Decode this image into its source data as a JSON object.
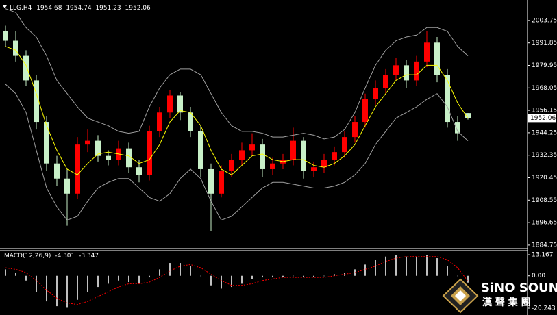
{
  "chart_data": [
    {
      "type": "candlestick",
      "title": "LLG,H4",
      "open": [
        1998,
        1993,
        1985,
        1972,
        1950,
        1928,
        1920,
        1912,
        1938,
        1940,
        1932,
        1930,
        1936,
        1926,
        1922,
        1945,
        1955,
        1964,
        1955,
        1945,
        1925,
        1912,
        1924,
        1930,
        1935,
        1938,
        1925,
        1928,
        1930,
        1940,
        1924,
        1926,
        1930,
        1934,
        1942,
        1950,
        1962,
        1968,
        1975,
        1980,
        1972,
        1982,
        1992,
        1975,
        1950,
        1954.68
      ],
      "high": [
        2001,
        1998,
        1988,
        1975,
        1953,
        1932,
        1925,
        1942,
        1946,
        1943,
        1935,
        1940,
        1939,
        1930,
        1948,
        1958,
        1967,
        1966,
        1958,
        1948,
        1928,
        1927,
        1933,
        1939,
        1944,
        1941,
        1931,
        1933,
        1947,
        1942,
        1929,
        1933,
        1937,
        1945,
        1953,
        1965,
        1972,
        1978,
        1984,
        1983,
        1985,
        1998,
        1995,
        1978,
        1953,
        1954.74
      ],
      "low": [
        1990,
        1982,
        1969,
        1946,
        1924,
        1916,
        1895,
        1909,
        1934,
        1929,
        1927,
        1927,
        1923,
        1918,
        1919,
        1942,
        1952,
        1951,
        1942,
        1921,
        1892,
        1910,
        1921,
        1927,
        1932,
        1921,
        1922,
        1925,
        1927,
        1920,
        1921,
        1923,
        1927,
        1931,
        1939,
        1947,
        1959,
        1965,
        1972,
        1968,
        1969,
        1979,
        1971,
        1947,
        1940,
        1951.23
      ],
      "close": [
        1993,
        1985,
        1972,
        1950,
        1928,
        1920,
        1912,
        1938,
        1940,
        1932,
        1930,
        1936,
        1926,
        1922,
        1945,
        1955,
        1964,
        1955,
        1945,
        1925,
        1912,
        1924,
        1930,
        1935,
        1938,
        1925,
        1928,
        1930,
        1940,
        1924,
        1926,
        1930,
        1934,
        1942,
        1950,
        1962,
        1968,
        1975,
        1980,
        1972,
        1982,
        1992,
        1975,
        1950,
        1944,
        1952.06
      ],
      "up_color": "#ff0000",
      "down_color": "#c8f0c8",
      "lines": [
        {
          "color": "#ffff00",
          "values": [
            1990,
            1988,
            1980,
            1965,
            1948,
            1935,
            1925,
            1922,
            1928,
            1933,
            1934,
            1933,
            1932,
            1928,
            1930,
            1938,
            1950,
            1956,
            1955,
            1948,
            1935,
            1925,
            1922,
            1927,
            1932,
            1933,
            1930,
            1929,
            1930,
            1930,
            1927,
            1926,
            1928,
            1932,
            1938,
            1948,
            1958,
            1965,
            1972,
            1975,
            1975,
            1980,
            1980,
            1972,
            1960,
            1952
          ]
        },
        {
          "color": "#a0a0a0",
          "values": [
            2010,
            2008,
            2000,
            1995,
            1985,
            1972,
            1965,
            1958,
            1952,
            1950,
            1948,
            1945,
            1944,
            1945,
            1958,
            1968,
            1975,
            1978,
            1978,
            1975,
            1965,
            1955,
            1948,
            1945,
            1945,
            1944,
            1942,
            1942,
            1943,
            1944,
            1943,
            1941,
            1942,
            1946,
            1955,
            1968,
            1980,
            1988,
            1993,
            1995,
            1996,
            2000,
            2000,
            1998,
            1990,
            1985
          ]
        },
        {
          "color": "#a0a0a0",
          "values": [
            1970,
            1965,
            1955,
            1935,
            1915,
            1905,
            1898,
            1900,
            1908,
            1915,
            1918,
            1920,
            1920,
            1915,
            1910,
            1908,
            1912,
            1920,
            1925,
            1920,
            1908,
            1898,
            1900,
            1905,
            1910,
            1915,
            1918,
            1918,
            1917,
            1916,
            1915,
            1915,
            1916,
            1918,
            1922,
            1928,
            1938,
            1945,
            1952,
            1955,
            1958,
            1962,
            1965,
            1958,
            1945,
            1940
          ]
        }
      ],
      "ylim": [
        1882.9,
        2014.6
      ],
      "yticks": [
        2003.75,
        1991.85,
        1979.95,
        1968.05,
        1956.15,
        1944.25,
        1932.35,
        1920.45,
        1908.55,
        1896.65,
        1884.75
      ]
    },
    {
      "type": "macd",
      "title": "MACD(12,26,9)",
      "histogram": [
        4,
        2,
        -3,
        -10,
        -16,
        -19,
        -20,
        -15,
        -10,
        -7,
        -5,
        -3,
        -4,
        -5,
        -1,
        4,
        8,
        8,
        6,
        0,
        -6,
        -8,
        -7,
        -5,
        -2,
        -1,
        -1,
        -1,
        0,
        -1,
        -1,
        0,
        1,
        2,
        4,
        7,
        10,
        12,
        13,
        12,
        12,
        13,
        11,
        6,
        0,
        -4.301
      ],
      "signal": [
        5,
        4,
        2,
        -3,
        -9,
        -14,
        -17,
        -18,
        -16,
        -13,
        -10,
        -7,
        -5,
        -5,
        -4,
        -1,
        3,
        6,
        7,
        5,
        1,
        -3,
        -6,
        -6,
        -5,
        -3,
        -2,
        -1,
        -1,
        -1,
        -1,
        -1,
        0,
        1,
        2,
        4,
        6,
        9,
        11,
        12,
        12,
        12,
        12,
        10,
        5,
        -3.347
      ],
      "hist_color": "#c0c0c0",
      "signal_color": "#ff0000",
      "ylim": [
        -22.81,
        15.73
      ],
      "yticks": [
        13.167,
        {
          "value": 0,
          "label": "0.00"
        },
        -20.243
      ]
    }
  ],
  "watermark": {
    "brand": "SiNO SOUND",
    "subtitle": "漢 聲 集 團"
  }
}
